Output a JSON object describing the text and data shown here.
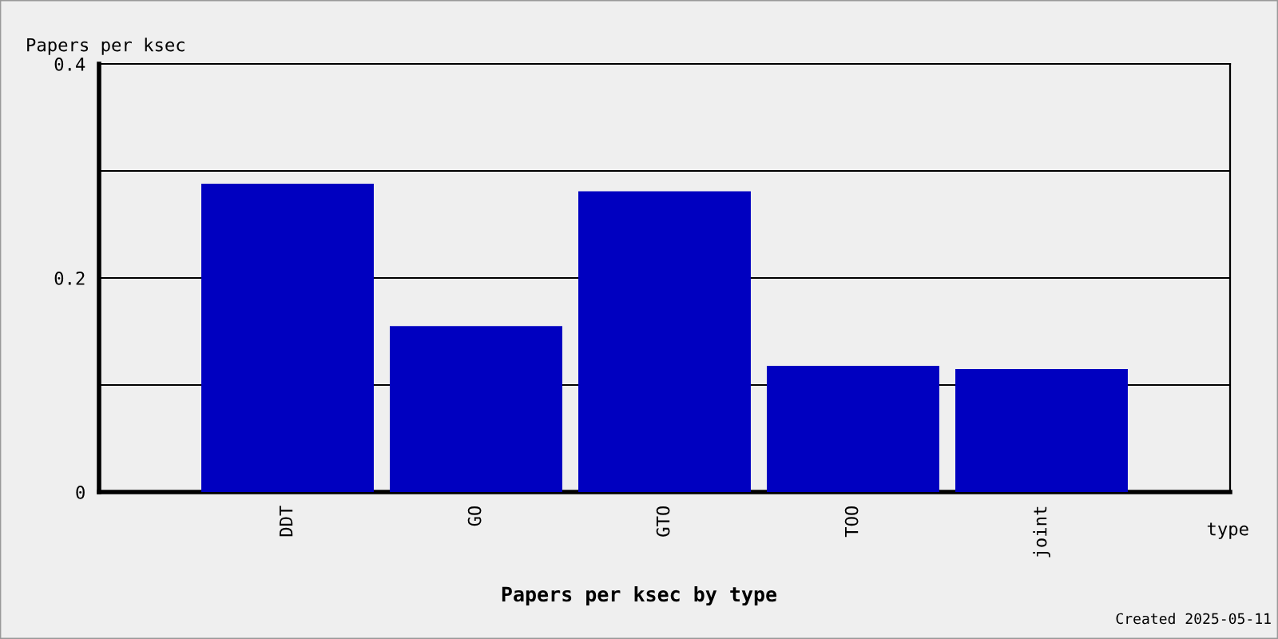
{
  "chart_data": {
    "type": "bar",
    "title": "Papers per ksec by type",
    "xlabel": "type",
    "ylabel": "Papers per ksec",
    "categories": [
      "DDT",
      "GO",
      "GTO",
      "TOO",
      "joint"
    ],
    "values": [
      0.288,
      0.155,
      0.281,
      0.118,
      0.115
    ],
    "color": "#0000c0",
    "ylim": [
      0,
      0.4
    ],
    "yticks": [
      0,
      {
        "value": 0.1,
        "label": null
      },
      0.2,
      {
        "value": 0.3,
        "label": null
      },
      0.4
    ],
    "grid": "y",
    "annotations": [
      "Created 2025-05-11"
    ]
  }
}
